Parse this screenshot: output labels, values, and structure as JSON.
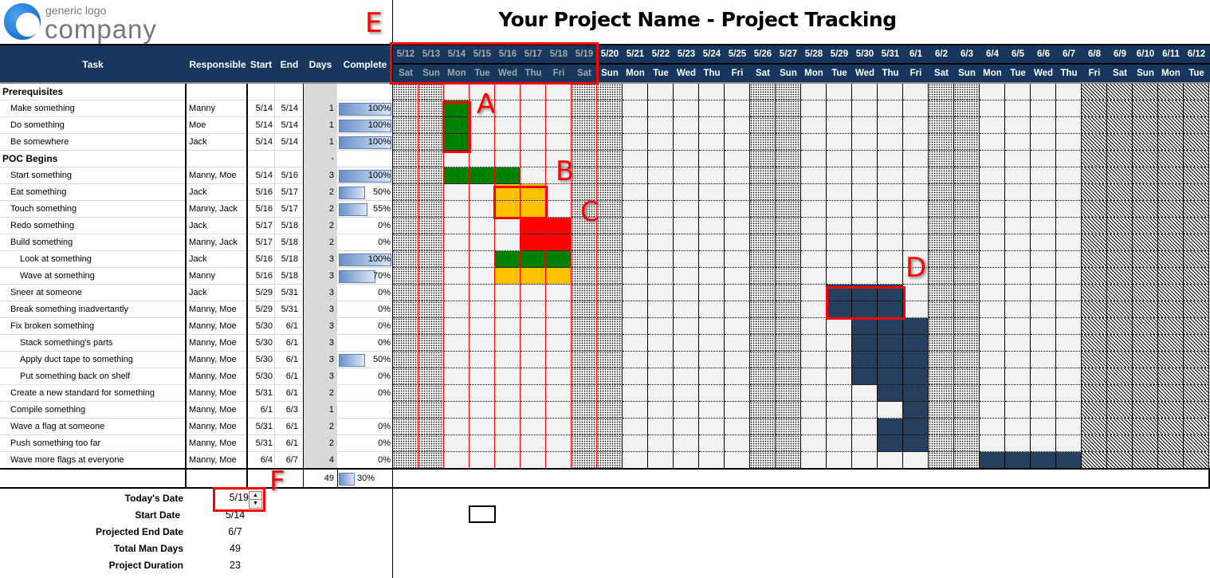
{
  "logo": {
    "line1": "generic logo",
    "line2": "company"
  },
  "title": "Your Project Name - Project Tracking",
  "columns": {
    "task": "Task",
    "responsible": "Responsible",
    "start": "Start",
    "end": "End",
    "days": "Days",
    "complete": "Complete"
  },
  "timeline": {
    "dates": [
      "5/12",
      "5/13",
      "5/14",
      "5/15",
      "5/16",
      "5/17",
      "5/18",
      "5/19",
      "5/20",
      "5/21",
      "5/22",
      "5/23",
      "5/24",
      "5/25",
      "5/26",
      "5/27",
      "5/28",
      "5/29",
      "5/30",
      "5/31",
      "6/1",
      "6/2",
      "6/3",
      "6/4",
      "6/5",
      "6/6",
      "6/7",
      "6/8",
      "6/9",
      "6/10",
      "6/11",
      "6/12"
    ],
    "weekdays": [
      "Sat",
      "Sun",
      "Mon",
      "Tue",
      "Wed",
      "Thu",
      "Fri",
      "Sat",
      "Sun",
      "Mon",
      "Tue",
      "Wed",
      "Thu",
      "Fri",
      "Sat",
      "Sun",
      "Mon",
      "Tue",
      "Wed",
      "Thu",
      "Fri",
      "Sat",
      "Sun",
      "Mon",
      "Tue",
      "Wed",
      "Thu",
      "Fri",
      "Sat",
      "Sun",
      "Mon",
      "Tue"
    ]
  },
  "colors": {
    "header": "#17375e",
    "complete": "#008000",
    "in-progress": "#ffc000",
    "overdue": "#ff0000",
    "planned": "#243f60",
    "annotation": "#ff0000"
  },
  "rows": [
    {
      "type": "section",
      "task": "Prerequisites",
      "responsible": "",
      "start": "",
      "end": "",
      "days": "",
      "complete": null
    },
    {
      "type": "task",
      "level": 1,
      "task": "Make something",
      "responsible": "Manny",
      "start": "5/14",
      "end": "5/14",
      "days": "1",
      "complete": 100,
      "status": "complete"
    },
    {
      "type": "task",
      "level": 1,
      "task": "Do something",
      "responsible": "Moe",
      "start": "5/14",
      "end": "5/14",
      "days": "1",
      "complete": 100,
      "status": "complete"
    },
    {
      "type": "task",
      "level": 1,
      "task": "Be somewhere",
      "responsible": "Jack",
      "start": "5/14",
      "end": "5/14",
      "days": "1",
      "complete": 100,
      "status": "complete"
    },
    {
      "type": "section",
      "task": "POC Begins",
      "responsible": "",
      "start": "",
      "end": "",
      "days": "-",
      "complete": null
    },
    {
      "type": "task",
      "level": 1,
      "task": "Start something",
      "responsible": "Manny, Moe",
      "start": "5/14",
      "end": "5/16",
      "days": "3",
      "complete": 100,
      "status": "complete"
    },
    {
      "type": "task",
      "level": 1,
      "task": "Eat something",
      "responsible": "Jack",
      "start": "5/16",
      "end": "5/17",
      "days": "2",
      "complete": 50,
      "status": "in-progress"
    },
    {
      "type": "task",
      "level": 1,
      "task": "Touch something",
      "responsible": "Manny, Jack",
      "start": "5/16",
      "end": "5/17",
      "days": "2",
      "complete": 55,
      "status": "in-progress"
    },
    {
      "type": "task",
      "level": 1,
      "task": "Redo something",
      "responsible": "Jack",
      "start": "5/17",
      "end": "5/18",
      "days": "2",
      "complete": 0,
      "status": "overdue"
    },
    {
      "type": "task",
      "level": 1,
      "task": "Build something",
      "responsible": "Manny, Jack",
      "start": "5/17",
      "end": "5/18",
      "days": "2",
      "complete": 0,
      "status": "overdue"
    },
    {
      "type": "task",
      "level": 2,
      "task": "Look at something",
      "responsible": "Jack",
      "start": "5/16",
      "end": "5/18",
      "days": "3",
      "complete": 100,
      "status": "complete"
    },
    {
      "type": "task",
      "level": 2,
      "task": "Wave at something",
      "responsible": "Manny",
      "start": "5/16",
      "end": "5/18",
      "days": "3",
      "complete": 70,
      "status": "in-progress"
    },
    {
      "type": "task",
      "level": 1,
      "task": "Sneer at someone",
      "responsible": "Jack",
      "start": "5/29",
      "end": "5/31",
      "days": "3",
      "complete": 0,
      "status": "planned"
    },
    {
      "type": "task",
      "level": 1,
      "task": "Break something inadvertantly",
      "responsible": "Manny, Moe",
      "start": "5/29",
      "end": "5/31",
      "days": "3",
      "complete": 0,
      "status": "planned"
    },
    {
      "type": "task",
      "level": 1,
      "task": "Fix broken something",
      "responsible": "Manny, Moe",
      "start": "5/30",
      "end": "6/1",
      "days": "3",
      "complete": 0,
      "status": "planned"
    },
    {
      "type": "task",
      "level": 2,
      "task": "Stack something's parts",
      "responsible": "Manny, Moe",
      "start": "5/30",
      "end": "6/1",
      "days": "3",
      "complete": 0,
      "status": "planned"
    },
    {
      "type": "task",
      "level": 2,
      "task": "Apply duct tape to something",
      "responsible": "Manny, Moe",
      "start": "5/30",
      "end": "6/1",
      "days": "3",
      "complete": 50,
      "status": "planned"
    },
    {
      "type": "task",
      "level": 2,
      "task": "Put something back on shelf",
      "responsible": "Manny, Moe",
      "start": "5/30",
      "end": "6/1",
      "days": "3",
      "complete": 0,
      "status": "planned"
    },
    {
      "type": "task",
      "level": 1,
      "task": "Create a new standard for something",
      "responsible": "Manny, Moe",
      "start": "5/31",
      "end": "6/1",
      "days": "2",
      "complete": 0,
      "status": "planned"
    },
    {
      "type": "task",
      "level": 1,
      "task": "Compile something",
      "responsible": "Manny, Moe",
      "start": "6/1",
      "end": "6/3",
      "days": "1",
      "complete": null,
      "status": "planned"
    },
    {
      "type": "task",
      "level": 1,
      "task": "Wave a flag at someone",
      "responsible": "Manny, Moe",
      "start": "5/31",
      "end": "6/1",
      "days": "2",
      "complete": 0,
      "status": "planned"
    },
    {
      "type": "task",
      "level": 1,
      "task": "Push something too far",
      "responsible": "Manny, Moe",
      "start": "5/31",
      "end": "6/1",
      "days": "2",
      "complete": 0,
      "status": "planned"
    },
    {
      "type": "task",
      "level": 1,
      "task": "Wave more flags at everyone",
      "responsible": "Manny, Moe",
      "start": "6/4",
      "end": "6/7",
      "days": "4",
      "complete": 0,
      "status": "planned"
    }
  ],
  "totals": {
    "days": "49",
    "complete": 30
  },
  "summary": {
    "todays_date_label": "Today's Date",
    "todays_date": "5/19",
    "start_date_label": "Start Date",
    "start_date": "5/14",
    "end_date_label": "Projected End Date",
    "end_date": "6/7",
    "man_days_label": "Total Man Days",
    "man_days": "49",
    "duration_label": "Project Duration",
    "duration": "23"
  },
  "annotations": [
    "A",
    "B",
    "C",
    "D",
    "E",
    "F"
  ]
}
